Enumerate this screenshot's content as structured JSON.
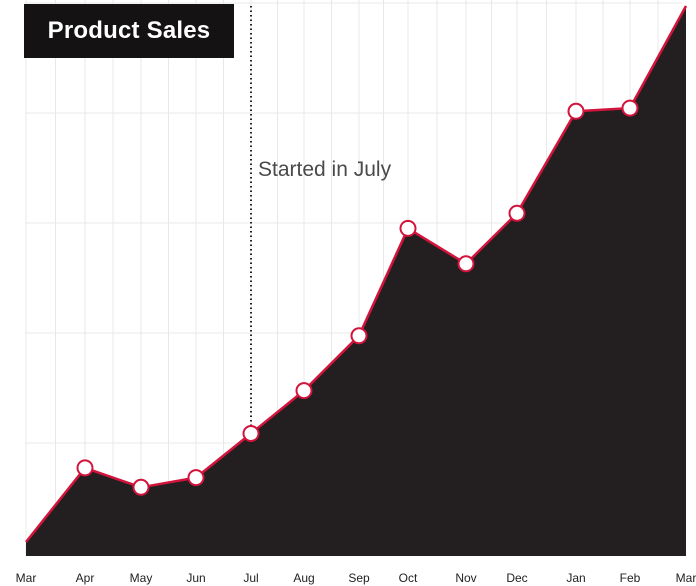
{
  "chart_data": {
    "type": "area",
    "title": "Product Sales",
    "categories": [
      "Mar",
      "Apr",
      "May",
      "Jun",
      "Jul",
      "Aug",
      "Sep",
      "Oct",
      "Nov",
      "Dec",
      "Jan",
      "Feb",
      "Mar"
    ],
    "values": [
      1,
      70,
      52,
      61,
      102,
      142,
      193,
      293,
      260,
      307,
      402,
      405,
      500
    ],
    "markers": [
      false,
      true,
      true,
      true,
      true,
      true,
      true,
      true,
      true,
      true,
      true,
      true,
      false
    ],
    "ylim": [
      -12,
      500
    ],
    "xlabel": "",
    "ylabel": "",
    "grid": true,
    "annotation": {
      "text": "Started in July",
      "at_category": "Jul",
      "style": "dotted-vertical-line"
    },
    "colors": {
      "fill": "#231f20",
      "line": "#d2143c",
      "marker_fill": "#ffffff",
      "grid": "#e8e8e8",
      "title_bg": "#141213",
      "title_text": "#ffffff",
      "annotation_text": "#4a4a4a",
      "tick_text": "#222222"
    }
  }
}
